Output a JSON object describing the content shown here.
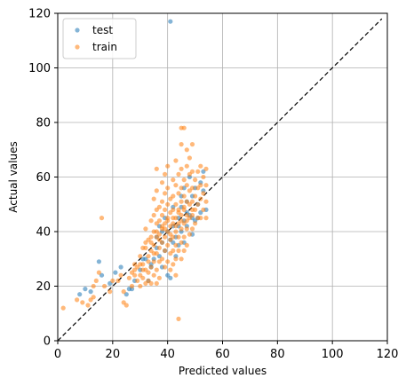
{
  "chart_data": {
    "type": "scatter",
    "xlabel": "Predicted values",
    "ylabel": "Actual values",
    "xlim": [
      0,
      120
    ],
    "ylim": [
      0,
      120
    ],
    "xticks": [
      "0",
      "20",
      "40",
      "60",
      "80",
      "100",
      "120"
    ],
    "yticks": [
      "0",
      "20",
      "40",
      "60",
      "80",
      "100",
      "120"
    ],
    "grid": true,
    "legend_position": "top-left",
    "reference_line": {
      "style": "dashed",
      "color": "#000000",
      "from": [
        0,
        0
      ],
      "to": [
        118,
        118
      ]
    },
    "series": [
      {
        "name": "test",
        "color": "#1f77b4",
        "points": [
          [
            41,
            117
          ],
          [
            10,
            19
          ],
          [
            8,
            17
          ],
          [
            12,
            18
          ],
          [
            15,
            29
          ],
          [
            16,
            24
          ],
          [
            19,
            21
          ],
          [
            21,
            25
          ],
          [
            23,
            27
          ],
          [
            25,
            17
          ],
          [
            26,
            19
          ],
          [
            27,
            19
          ],
          [
            28,
            22
          ],
          [
            30,
            26
          ],
          [
            31,
            30
          ],
          [
            32,
            30
          ],
          [
            33,
            22
          ],
          [
            34,
            27
          ],
          [
            35,
            30
          ],
          [
            36,
            34
          ],
          [
            36,
            38
          ],
          [
            37,
            31
          ],
          [
            37,
            42
          ],
          [
            38,
            36
          ],
          [
            38,
            27
          ],
          [
            39,
            45
          ],
          [
            39,
            33
          ],
          [
            40,
            40
          ],
          [
            40,
            24
          ],
          [
            41,
            23
          ],
          [
            41,
            37
          ],
          [
            42,
            49
          ],
          [
            42,
            42
          ],
          [
            43,
            38
          ],
          [
            43,
            31
          ],
          [
            44,
            45
          ],
          [
            44,
            35
          ],
          [
            45,
            49
          ],
          [
            45,
            53
          ],
          [
            45,
            40
          ],
          [
            46,
            44
          ],
          [
            46,
            56
          ],
          [
            46,
            36
          ],
          [
            47,
            51
          ],
          [
            47,
            42
          ],
          [
            48,
            60
          ],
          [
            48,
            46
          ],
          [
            49,
            53
          ],
          [
            49,
            39
          ],
          [
            50,
            56
          ],
          [
            50,
            44
          ],
          [
            51,
            50
          ],
          [
            52,
            58
          ],
          [
            52,
            47
          ],
          [
            53,
            62
          ],
          [
            53,
            55
          ],
          [
            54,
            48
          ],
          [
            34,
            28
          ],
          [
            38,
            40
          ],
          [
            42,
            36
          ],
          [
            44,
            42
          ],
          [
            47,
            47
          ],
          [
            49,
            45
          ],
          [
            51,
            45
          ]
        ]
      },
      {
        "name": "train",
        "color": "#ff7f0e",
        "points": [
          [
            2,
            12
          ],
          [
            7,
            15
          ],
          [
            9,
            14
          ],
          [
            11,
            13
          ],
          [
            12,
            15
          ],
          [
            13,
            20
          ],
          [
            13,
            16
          ],
          [
            14,
            22
          ],
          [
            15,
            25
          ],
          [
            16,
            45
          ],
          [
            17,
            20
          ],
          [
            19,
            18
          ],
          [
            20,
            22
          ],
          [
            22,
            22
          ],
          [
            23,
            24
          ],
          [
            24,
            18
          ],
          [
            24,
            14
          ],
          [
            25,
            13
          ],
          [
            26,
            23
          ],
          [
            27,
            25
          ],
          [
            27,
            20
          ],
          [
            28,
            28
          ],
          [
            28,
            24
          ],
          [
            29,
            27
          ],
          [
            29,
            22
          ],
          [
            30,
            31
          ],
          [
            30,
            24
          ],
          [
            30,
            20
          ],
          [
            31,
            34
          ],
          [
            31,
            28
          ],
          [
            31,
            23
          ],
          [
            32,
            41
          ],
          [
            32,
            36
          ],
          [
            32,
            26
          ],
          [
            32,
            21
          ],
          [
            33,
            37
          ],
          [
            33,
            31
          ],
          [
            33,
            25
          ],
          [
            33,
            22
          ],
          [
            34,
            44
          ],
          [
            34,
            38
          ],
          [
            34,
            33
          ],
          [
            34,
            27
          ],
          [
            34,
            21
          ],
          [
            35,
            52
          ],
          [
            35,
            46
          ],
          [
            35,
            40
          ],
          [
            35,
            35
          ],
          [
            35,
            29
          ],
          [
            35,
            24
          ],
          [
            36,
            63
          ],
          [
            36,
            55
          ],
          [
            36,
            48
          ],
          [
            36,
            43
          ],
          [
            36,
            38
          ],
          [
            36,
            32
          ],
          [
            36,
            26
          ],
          [
            36,
            21
          ],
          [
            37,
            49
          ],
          [
            37,
            44
          ],
          [
            37,
            39
          ],
          [
            37,
            34
          ],
          [
            37,
            29
          ],
          [
            37,
            23
          ],
          [
            38,
            58
          ],
          [
            38,
            51
          ],
          [
            38,
            46
          ],
          [
            38,
            41
          ],
          [
            38,
            36
          ],
          [
            38,
            30
          ],
          [
            39,
            61
          ],
          [
            39,
            54
          ],
          [
            39,
            48
          ],
          [
            39,
            43
          ],
          [
            39,
            38
          ],
          [
            39,
            33
          ],
          [
            39,
            27
          ],
          [
            40,
            64
          ],
          [
            40,
            56
          ],
          [
            40,
            50
          ],
          [
            40,
            45
          ],
          [
            40,
            40
          ],
          [
            40,
            35
          ],
          [
            40,
            29
          ],
          [
            41,
            52
          ],
          [
            41,
            47
          ],
          [
            41,
            42
          ],
          [
            41,
            37
          ],
          [
            41,
            32
          ],
          [
            41,
            26
          ],
          [
            42,
            59
          ],
          [
            42,
            53
          ],
          [
            42,
            48
          ],
          [
            42,
            43
          ],
          [
            42,
            38
          ],
          [
            42,
            33
          ],
          [
            42,
            28
          ],
          [
            43,
            66
          ],
          [
            43,
            57
          ],
          [
            43,
            50
          ],
          [
            43,
            45
          ],
          [
            43,
            40
          ],
          [
            43,
            35
          ],
          [
            43,
            30
          ],
          [
            43,
            24
          ],
          [
            44,
            61
          ],
          [
            44,
            54
          ],
          [
            44,
            48
          ],
          [
            44,
            43
          ],
          [
            44,
            38
          ],
          [
            44,
            33
          ],
          [
            44,
            8
          ],
          [
            45,
            78
          ],
          [
            45,
            72
          ],
          [
            45,
            63
          ],
          [
            45,
            56
          ],
          [
            45,
            51
          ],
          [
            45,
            46
          ],
          [
            45,
            41
          ],
          [
            45,
            36
          ],
          [
            45,
            30
          ],
          [
            46,
            78
          ],
          [
            46,
            59
          ],
          [
            46,
            53
          ],
          [
            46,
            48
          ],
          [
            46,
            43
          ],
          [
            46,
            38
          ],
          [
            46,
            33
          ],
          [
            47,
            70
          ],
          [
            47,
            64
          ],
          [
            47,
            57
          ],
          [
            47,
            51
          ],
          [
            47,
            46
          ],
          [
            47,
            41
          ],
          [
            47,
            35
          ],
          [
            48,
            67
          ],
          [
            48,
            61
          ],
          [
            48,
            55
          ],
          [
            48,
            50
          ],
          [
            48,
            45
          ],
          [
            48,
            39
          ],
          [
            49,
            72
          ],
          [
            49,
            62
          ],
          [
            49,
            56
          ],
          [
            49,
            51
          ],
          [
            49,
            46
          ],
          [
            49,
            41
          ],
          [
            50,
            59
          ],
          [
            50,
            53
          ],
          [
            50,
            48
          ],
          [
            50,
            43
          ],
          [
            51,
            62
          ],
          [
            51,
            56
          ],
          [
            51,
            50
          ],
          [
            51,
            45
          ],
          [
            52,
            64
          ],
          [
            52,
            57
          ],
          [
            52,
            52
          ],
          [
            52,
            45
          ],
          [
            53,
            60
          ],
          [
            53,
            54
          ],
          [
            53,
            48
          ],
          [
            54,
            63
          ],
          [
            54,
            57
          ],
          [
            54,
            51
          ],
          [
            54,
            45
          ],
          [
            38,
            42
          ],
          [
            40,
            44
          ],
          [
            42,
            45
          ],
          [
            44,
            47
          ],
          [
            46,
            49
          ],
          [
            36,
            40
          ],
          [
            34,
            36
          ],
          [
            32,
            34
          ],
          [
            30,
            28
          ],
          [
            28,
            26
          ],
          [
            41,
            39
          ],
          [
            43,
            42
          ],
          [
            45,
            44
          ],
          [
            47,
            44
          ],
          [
            49,
            48
          ],
          [
            39,
            41
          ],
          [
            37,
            37
          ],
          [
            35,
            32
          ],
          [
            33,
            29
          ],
          [
            31,
            26
          ]
        ]
      }
    ]
  }
}
